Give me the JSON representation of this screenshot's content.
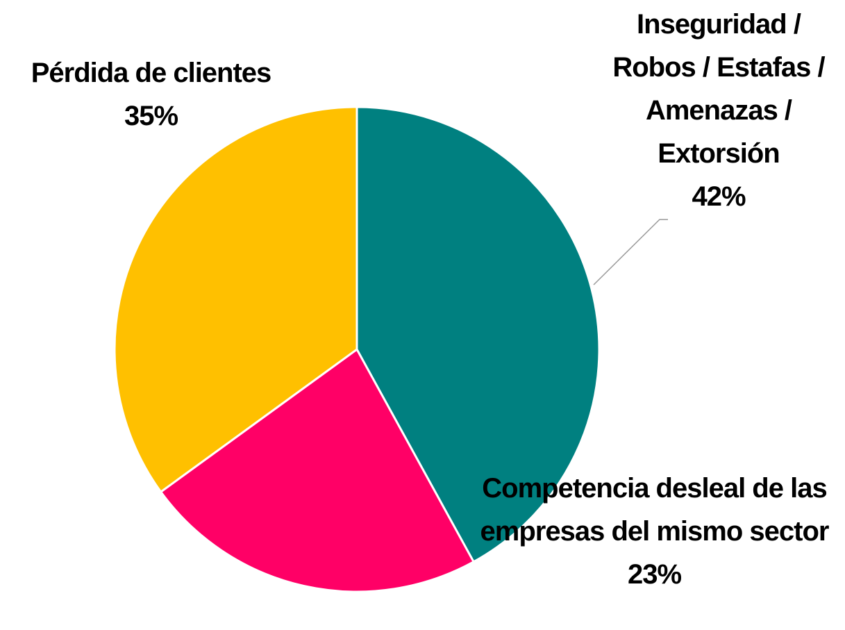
{
  "chart_data": {
    "type": "pie",
    "categories": [
      "Inseguridad / Robos / Estafas / Amenazas / Extorsión",
      "Competencia desleal de las empresas del mismo sector",
      "Pérdida de clientes"
    ],
    "values": [
      42,
      23,
      35
    ],
    "value_labels": [
      "42%",
      "23%",
      "35%"
    ],
    "colors": [
      "#008080",
      "#ff0066",
      "#ffc000"
    ]
  }
}
